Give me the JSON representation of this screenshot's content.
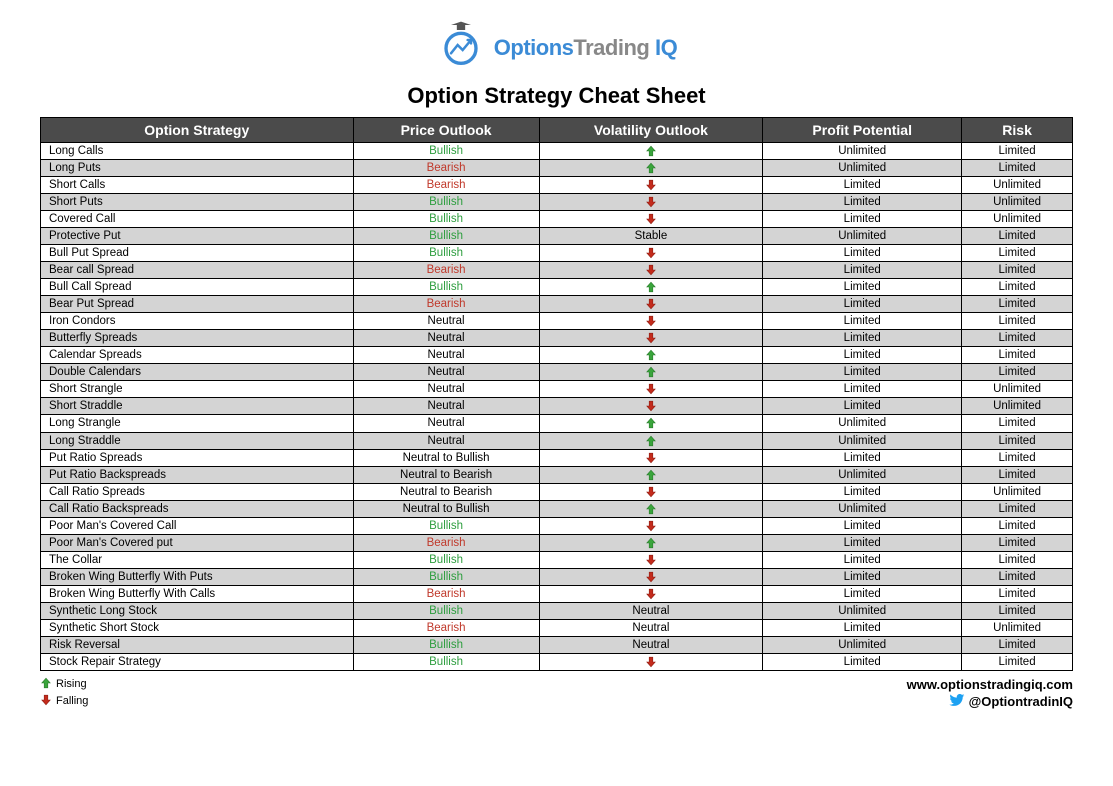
{
  "brand": {
    "part1": "Options",
    "part2": "Trading",
    "part3": "IQ"
  },
  "title": "Option Strategy Cheat Sheet",
  "columns": [
    "Option Strategy",
    "Price Outlook",
    "Volatility Outlook",
    "Profit Potential",
    "Risk"
  ],
  "colors": {
    "bullish": "#2e9e3f",
    "bearish": "#c0392b",
    "neutral": "#000000",
    "arrow_up_fill": "#3aa53c",
    "arrow_up_stroke": "#2a7a2c",
    "arrow_down_fill": "#c42b1c",
    "arrow_down_stroke": "#8e1f14",
    "header_bg": "#4b4b4b",
    "row_alt_bg": "#d4d4d4",
    "twitter": "#1da1f2"
  },
  "legend": {
    "rising": "Rising",
    "falling": "Falling"
  },
  "footer": {
    "site": "www.optionstradingiq.com",
    "handle": "@OptiontradinIQ"
  },
  "rows": [
    {
      "strategy": "Long Calls",
      "outlook": "Bullish",
      "outlook_type": "bullish",
      "vol": "up",
      "profit": "Unlimited",
      "risk": "Limited"
    },
    {
      "strategy": "Long Puts",
      "outlook": "Bearish",
      "outlook_type": "bearish",
      "vol": "up",
      "profit": "Unlimited",
      "risk": "Limited"
    },
    {
      "strategy": "Short Calls",
      "outlook": "Bearish",
      "outlook_type": "bearish",
      "vol": "down",
      "profit": "Limited",
      "risk": "Unlimited"
    },
    {
      "strategy": "Short Puts",
      "outlook": "Bullish",
      "outlook_type": "bullish",
      "vol": "down",
      "profit": "Limited",
      "risk": "Unlimited"
    },
    {
      "strategy": "Covered Call",
      "outlook": "Bullish",
      "outlook_type": "bullish",
      "vol": "down",
      "profit": "Limited",
      "risk": "Unlimited"
    },
    {
      "strategy": "Protective Put",
      "outlook": "Bullish",
      "outlook_type": "bullish",
      "vol": "text",
      "vol_text": "Stable",
      "profit": "Unlimited",
      "risk": "Limited"
    },
    {
      "strategy": "Bull Put Spread",
      "outlook": "Bullish",
      "outlook_type": "bullish",
      "vol": "down",
      "profit": "Limited",
      "risk": "Limited"
    },
    {
      "strategy": "Bear call Spread",
      "outlook": "Bearish",
      "outlook_type": "bearish",
      "vol": "down",
      "profit": "Limited",
      "risk": "Limited"
    },
    {
      "strategy": "Bull Call Spread",
      "outlook": "Bullish",
      "outlook_type": "bullish",
      "vol": "up",
      "profit": "Limited",
      "risk": "Limited"
    },
    {
      "strategy": "Bear Put Spread",
      "outlook": "Bearish",
      "outlook_type": "bearish",
      "vol": "down",
      "profit": "Limited",
      "risk": "Limited"
    },
    {
      "strategy": "Iron Condors",
      "outlook": "Neutral",
      "outlook_type": "neutral",
      "vol": "down",
      "profit": "Limited",
      "risk": "Limited"
    },
    {
      "strategy": "Butterfly Spreads",
      "outlook": "Neutral",
      "outlook_type": "neutral",
      "vol": "down",
      "profit": "Limited",
      "risk": "Limited"
    },
    {
      "strategy": "Calendar Spreads",
      "outlook": "Neutral",
      "outlook_type": "neutral",
      "vol": "up",
      "profit": "Limited",
      "risk": "Limited"
    },
    {
      "strategy": "Double Calendars",
      "outlook": "Neutral",
      "outlook_type": "neutral",
      "vol": "up",
      "profit": "Limited",
      "risk": "Limited"
    },
    {
      "strategy": "Short Strangle",
      "outlook": "Neutral",
      "outlook_type": "neutral",
      "vol": "down",
      "profit": "Limited",
      "risk": "Unlimited"
    },
    {
      "strategy": "Short Straddle",
      "outlook": "Neutral",
      "outlook_type": "neutral",
      "vol": "down",
      "profit": "Limited",
      "risk": "Unlimited"
    },
    {
      "strategy": "Long Strangle",
      "outlook": "Neutral",
      "outlook_type": "neutral",
      "vol": "up",
      "profit": "Unlimited",
      "risk": "Limited"
    },
    {
      "strategy": "Long Straddle",
      "outlook": "Neutral",
      "outlook_type": "neutral",
      "vol": "up",
      "profit": "Unlimited",
      "risk": "Limited"
    },
    {
      "strategy": "Put Ratio Spreads",
      "outlook": "Neutral to Bullish",
      "outlook_type": "neutral",
      "vol": "down",
      "profit": "Limited",
      "risk": "Limited"
    },
    {
      "strategy": "Put Ratio Backspreads",
      "outlook": "Neutral to Bearish",
      "outlook_type": "neutral",
      "vol": "up",
      "profit": "Unlimited",
      "risk": "Limited"
    },
    {
      "strategy": "Call Ratio Spreads",
      "outlook": "Neutral to Bearish",
      "outlook_type": "neutral",
      "vol": "down",
      "profit": "Limited",
      "risk": "Unlimited"
    },
    {
      "strategy": "Call Ratio Backspreads",
      "outlook": "Neutral to Bullish",
      "outlook_type": "neutral",
      "vol": "up",
      "profit": "Unlimited",
      "risk": "Limited"
    },
    {
      "strategy": "Poor Man's Covered Call",
      "outlook": "Bullish",
      "outlook_type": "bullish",
      "vol": "down",
      "profit": "Limited",
      "risk": "Limited"
    },
    {
      "strategy": "Poor Man's Covered put",
      "outlook": "Bearish",
      "outlook_type": "bearish",
      "vol": "up",
      "profit": "Limited",
      "risk": "Limited"
    },
    {
      "strategy": "The Collar",
      "outlook": "Bullish",
      "outlook_type": "bullish",
      "vol": "down",
      "profit": "Limited",
      "risk": "Limited"
    },
    {
      "strategy": "Broken Wing Butterfly With Puts",
      "outlook": "Bullish",
      "outlook_type": "bullish",
      "vol": "down",
      "profit": "Limited",
      "risk": "Limited"
    },
    {
      "strategy": "Broken Wing Butterfly With Calls",
      "outlook": "Bearish",
      "outlook_type": "bearish",
      "vol": "down",
      "profit": "Limited",
      "risk": "Limited"
    },
    {
      "strategy": "Synthetic Long Stock",
      "outlook": "Bullish",
      "outlook_type": "bullish",
      "vol": "text",
      "vol_text": "Neutral",
      "profit": "Unlimited",
      "risk": "Limited"
    },
    {
      "strategy": "Synthetic Short Stock",
      "outlook": "Bearish",
      "outlook_type": "bearish",
      "vol": "text",
      "vol_text": "Neutral",
      "profit": "Limited",
      "risk": "Unlimited"
    },
    {
      "strategy": "Risk Reversal",
      "outlook": "Bullish",
      "outlook_type": "bullish",
      "vol": "text",
      "vol_text": "Neutral",
      "profit": "Unlimited",
      "risk": "Limited"
    },
    {
      "strategy": "Stock Repair Strategy",
      "outlook": "Bullish",
      "outlook_type": "bullish",
      "vol": "down",
      "profit": "Limited",
      "risk": "Limited"
    }
  ]
}
